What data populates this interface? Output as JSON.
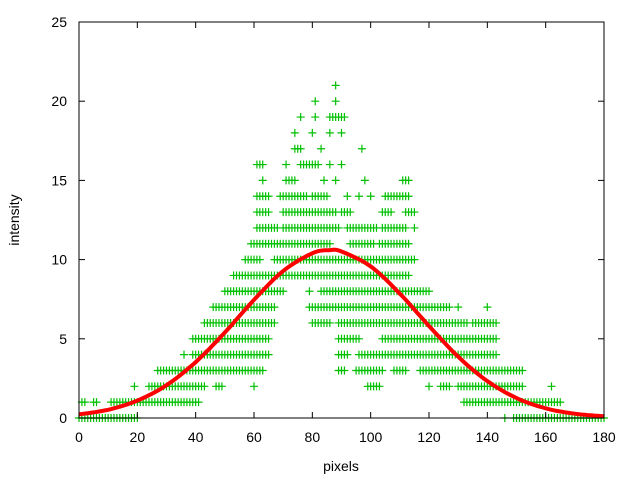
{
  "chart_data": {
    "type": "scatter",
    "title": "",
    "xlabel": "pixels",
    "ylabel": "intensity",
    "xlim": [
      0,
      180
    ],
    "ylim": [
      0,
      25
    ],
    "xticks": [
      0,
      20,
      40,
      60,
      80,
      100,
      120,
      140,
      160,
      180
    ],
    "yticks": [
      0,
      5,
      10,
      15,
      20,
      25
    ],
    "grid": false,
    "legend": "none",
    "colors": {
      "points": "#00c000",
      "curve": "#ff0000",
      "frame": "#000000"
    },
    "point_marker": "plus",
    "points_by_level": [
      {
        "y": 0,
        "x_ranges": [
          [
            0,
            20
          ],
          [
            146,
            146
          ],
          [
            149,
            180
          ]
        ]
      },
      {
        "y": 1,
        "x_ranges": [
          [
            1,
            2
          ],
          [
            5,
            6
          ],
          [
            11,
            41
          ],
          [
            132,
            165
          ]
        ]
      },
      {
        "y": 2,
        "x_ranges": [
          [
            19,
            19
          ],
          [
            24,
            43
          ],
          [
            47,
            49
          ],
          [
            60,
            60
          ],
          [
            99,
            103
          ],
          [
            120,
            120
          ],
          [
            124,
            127
          ],
          [
            130,
            152
          ],
          [
            162,
            162
          ]
        ]
      },
      {
        "y": 3,
        "x_ranges": [
          [
            27,
            63
          ],
          [
            89,
            91
          ],
          [
            95,
            104
          ],
          [
            108,
            112
          ],
          [
            117,
            152
          ]
        ]
      },
      {
        "y": 4,
        "x_ranges": [
          [
            36,
            36
          ],
          [
            39,
            65
          ],
          [
            89,
            92
          ],
          [
            96,
            115
          ],
          [
            116,
            143
          ]
        ]
      },
      {
        "y": 5,
        "x_ranges": [
          [
            39,
            65
          ],
          [
            89,
            96
          ],
          [
            104,
            143
          ]
        ]
      },
      {
        "y": 6,
        "x_ranges": [
          [
            43,
            67
          ],
          [
            80,
            86
          ],
          [
            89,
            99
          ],
          [
            100,
            133
          ],
          [
            135,
            143
          ]
        ]
      },
      {
        "y": 7,
        "x_ranges": [
          [
            46,
            67
          ],
          [
            79,
            127
          ],
          [
            130,
            130
          ],
          [
            140,
            140
          ]
        ]
      },
      {
        "y": 8,
        "x_ranges": [
          [
            50,
            70
          ],
          [
            79,
            79
          ],
          [
            83,
            120
          ]
        ]
      },
      {
        "y": 9,
        "x_ranges": [
          [
            53,
            58
          ],
          [
            59,
            113
          ]
        ]
      },
      {
        "y": 10,
        "x_ranges": [
          [
            57,
            62
          ],
          [
            67,
            115
          ]
        ]
      },
      {
        "y": 11,
        "x_ranges": [
          [
            59,
            86
          ],
          [
            93,
            101
          ],
          [
            103,
            113
          ]
        ]
      },
      {
        "y": 12,
        "x_ranges": [
          [
            61,
            68
          ],
          [
            70,
            89
          ],
          [
            92,
            102
          ],
          [
            104,
            112
          ],
          [
            115,
            115
          ]
        ]
      },
      {
        "y": 13,
        "x_ranges": [
          [
            61,
            65
          ],
          [
            70,
            88
          ],
          [
            90,
            93
          ],
          [
            104,
            107
          ],
          [
            112,
            115
          ]
        ]
      },
      {
        "y": 14,
        "x_ranges": [
          [
            61,
            65
          ],
          [
            69,
            78
          ],
          [
            80,
            85
          ],
          [
            92,
            92
          ],
          [
            96,
            96
          ],
          [
            100,
            100
          ],
          [
            105,
            113
          ]
        ]
      },
      {
        "y": 15,
        "x_ranges": [
          [
            63,
            63
          ],
          [
            71,
            74
          ],
          [
            84,
            84
          ],
          [
            88,
            88
          ],
          [
            98,
            98
          ],
          [
            111,
            113
          ]
        ]
      },
      {
        "y": 16,
        "x_ranges": [
          [
            61,
            63
          ],
          [
            71,
            71
          ],
          [
            76,
            82
          ],
          [
            86,
            86
          ],
          [
            90,
            90
          ]
        ]
      },
      {
        "y": 17,
        "x_ranges": [
          [
            74,
            76
          ],
          [
            83,
            83
          ],
          [
            97,
            97
          ]
        ]
      },
      {
        "y": 18,
        "x_ranges": [
          [
            74,
            74
          ],
          [
            80,
            80
          ],
          [
            86,
            86
          ],
          [
            90,
            90
          ]
        ]
      },
      {
        "y": 19,
        "x_ranges": [
          [
            76,
            76
          ],
          [
            81,
            81
          ],
          [
            86,
            91
          ]
        ]
      },
      {
        "y": 20,
        "x_ranges": [
          [
            81,
            81
          ],
          [
            88,
            88
          ]
        ]
      },
      {
        "y": 21,
        "x_ranges": [
          [
            88,
            88
          ]
        ]
      }
    ],
    "fit_curve": {
      "x": [
        0,
        10,
        20,
        30,
        40,
        50,
        60,
        70,
        80,
        86,
        90,
        100,
        110,
        120,
        130,
        140,
        150,
        160,
        170,
        180
      ],
      "y": [
        0.23,
        0.52,
        1.1,
        2.07,
        3.53,
        5.4,
        7.46,
        9.28,
        10.4,
        10.6,
        10.51,
        9.57,
        7.85,
        5.81,
        3.87,
        2.33,
        1.26,
        0.61,
        0.27,
        0.11
      ]
    }
  }
}
